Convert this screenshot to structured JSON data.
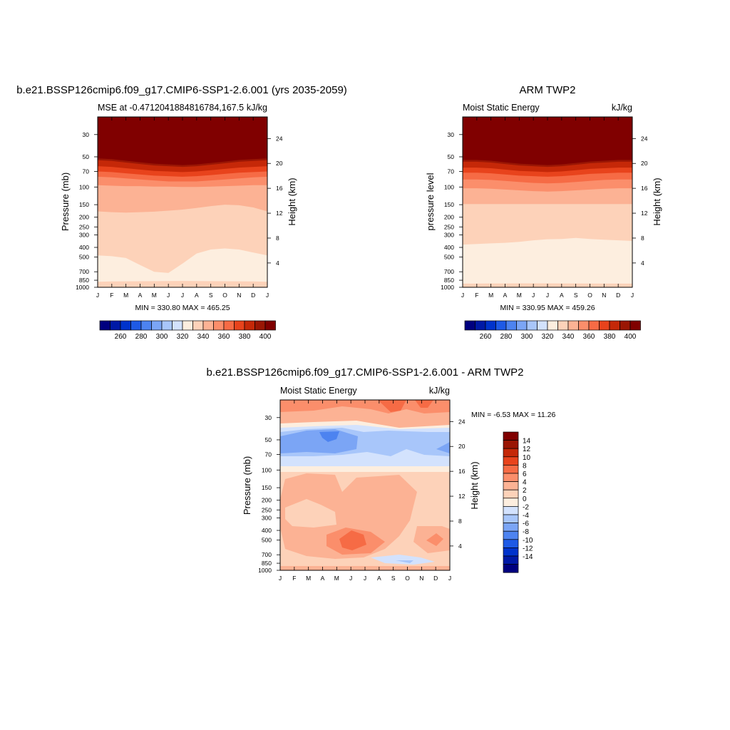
{
  "chart_data": [
    {
      "type": "heatmap",
      "title": "b.e21.BSSP126cmip6.f09_g17.CMIP6-SSP1-2.6.001 (yrs 2035-2059)",
      "subtitle_left": "MSE at -0.4712041884816784,167.5",
      "subtitle_right": "kJ/kg",
      "ylabel": "Pressure (mb)",
      "ylabel_right": "Height (km)",
      "x_ticks": [
        "J",
        "F",
        "M",
        "A",
        "M",
        "J",
        "J",
        "A",
        "S",
        "O",
        "N",
        "D",
        "J"
      ],
      "y_ticks": [
        "30",
        "50",
        "70",
        "100",
        "150",
        "200",
        "250",
        "300",
        "400",
        "500",
        "700",
        "850",
        "1000"
      ],
      "y_right_ticks": [
        "24",
        "20",
        "16",
        "12",
        "8",
        "4"
      ],
      "stats": "MIN = 330.80 MAX = 465.25",
      "colorbar_labels": [
        "260",
        "280",
        "300",
        "320",
        "340",
        "360",
        "380",
        "400"
      ],
      "colorbar_levels": [
        250,
        260,
        270,
        280,
        290,
        300,
        310,
        320,
        330,
        340,
        350,
        360,
        370,
        380,
        390,
        400,
        410
      ],
      "band_levels": [
        335,
        345,
        355,
        365,
        375,
        385,
        395,
        405
      ],
      "band_boundaries_mb": [
        [
          880,
          875,
          872,
          870,
          868,
          866,
          865,
          866,
          868,
          870,
          872,
          875,
          880
        ],
        [
          480,
          490,
          510,
          600,
          700,
          720,
          580,
          460,
          420,
          410,
          420,
          450,
          480
        ],
        [
          175,
          178,
          180,
          178,
          176,
          172,
          168,
          162,
          155,
          150,
          152,
          160,
          175
        ],
        [
          96,
          97,
          98,
          98,
          99,
          99,
          100,
          100,
          99,
          98,
          97,
          96,
          96
        ],
        [
          79,
          80,
          82,
          84,
          86,
          88,
          88,
          88,
          86,
          84,
          82,
          80,
          79
        ],
        [
          70,
          71,
          73,
          75,
          77,
          78,
          79,
          78,
          76,
          74,
          72,
          71,
          70
        ],
        [
          62,
          63,
          65,
          67,
          69,
          70,
          71,
          70,
          68,
          66,
          64,
          63,
          62
        ],
        [
          54,
          55,
          57,
          59,
          61,
          62,
          63,
          62,
          60,
          58,
          56,
          55,
          54
        ]
      ]
    },
    {
      "type": "heatmap",
      "title": "ARM TWP2",
      "subtitle_left": "Moist Static Energy",
      "subtitle_right": "kJ/kg",
      "ylabel": "pressure level",
      "ylabel_right": "Height (km)",
      "x_ticks": [
        "J",
        "F",
        "M",
        "A",
        "M",
        "J",
        "J",
        "A",
        "S",
        "O",
        "N",
        "D",
        "J"
      ],
      "y_ticks": [
        "30",
        "50",
        "70",
        "100",
        "150",
        "200",
        "250",
        "300",
        "400",
        "500",
        "700",
        "850",
        "1000"
      ],
      "y_right_ticks": [
        "24",
        "20",
        "16",
        "12",
        "8",
        "4"
      ],
      "stats": "MIN = 330.95 MAX = 459.26",
      "colorbar_labels": [
        "260",
        "280",
        "300",
        "320",
        "340",
        "360",
        "380",
        "400"
      ],
      "colorbar_levels": [
        250,
        260,
        270,
        280,
        290,
        300,
        310,
        320,
        330,
        340,
        350,
        360,
        370,
        380,
        390,
        400,
        410
      ],
      "band_levels": [
        335,
        345,
        355,
        365,
        375,
        385,
        395,
        405
      ],
      "band_boundaries_mb": [
        [
          920,
          918,
          916,
          915,
          914,
          914,
          914,
          915,
          916,
          917,
          918,
          919,
          920
        ],
        [
          375,
          370,
          365,
          360,
          352,
          340,
          332,
          330,
          322,
          330,
          335,
          340,
          345
        ],
        [
          148,
          148,
          148,
          148,
          148,
          148,
          148,
          148,
          148,
          148,
          148,
          148,
          148
        ],
        [
          103,
          103,
          104,
          106,
          108,
          110,
          111,
          110,
          108,
          106,
          104,
          103,
          103
        ],
        [
          84,
          84,
          85,
          87,
          89,
          91,
          92,
          91,
          89,
          87,
          85,
          84,
          84
        ],
        [
          72,
          72,
          73,
          75,
          77,
          78,
          79,
          78,
          76,
          74,
          73,
          72,
          72
        ],
        [
          64,
          64,
          65,
          67,
          69,
          70,
          71,
          70,
          68,
          66,
          65,
          64,
          64
        ],
        [
          56,
          56,
          57,
          59,
          61,
          62,
          63,
          62,
          60,
          58,
          57,
          56,
          56
        ]
      ]
    },
    {
      "type": "heatmap",
      "title": "b.e21.BSSP126cmip6.f09_g17.CMIP6-SSP1-2.6.001 - ARM TWP2",
      "subtitle_left": "Moist Static Energy",
      "subtitle_right": "kJ/kg",
      "ylabel": "Pressure (mb)",
      "ylabel_right": "Height (km)",
      "x_ticks": [
        "J",
        "F",
        "M",
        "A",
        "M",
        "J",
        "J",
        "A",
        "S",
        "O",
        "N",
        "D",
        "J"
      ],
      "y_ticks": [
        "30",
        "50",
        "70",
        "100",
        "150",
        "200",
        "250",
        "300",
        "400",
        "500",
        "700",
        "850",
        "1000"
      ],
      "y_right_ticks": [
        "24",
        "20",
        "16",
        "12",
        "8",
        "4"
      ],
      "stats": "MIN =  -6.53 MAX =  11.26",
      "colorbar_labels": [
        "14",
        "12",
        "10",
        "8",
        "6",
        "4",
        "2",
        "0",
        "-2",
        "-4",
        "-6",
        "-8",
        "-10",
        "-12",
        "-14"
      ],
      "colorbar_levels": [
        16,
        14,
        12,
        10,
        8,
        6,
        4,
        2,
        0,
        -2,
        -4,
        -6,
        -8,
        -10,
        -12,
        -14,
        -16
      ]
    }
  ],
  "colors": {
    "scale": [
      "#00007f",
      "#0019a6",
      "#0033cc",
      "#1e5ae6",
      "#4d83f0",
      "#7ba5f5",
      "#a8c6fa",
      "#d3e2fd",
      "#fdeedf",
      "#fdd2b9",
      "#fcb294",
      "#fb8e6b",
      "#f66b45",
      "#e8431c",
      "#c52808",
      "#9a1604",
      "#800000"
    ]
  }
}
